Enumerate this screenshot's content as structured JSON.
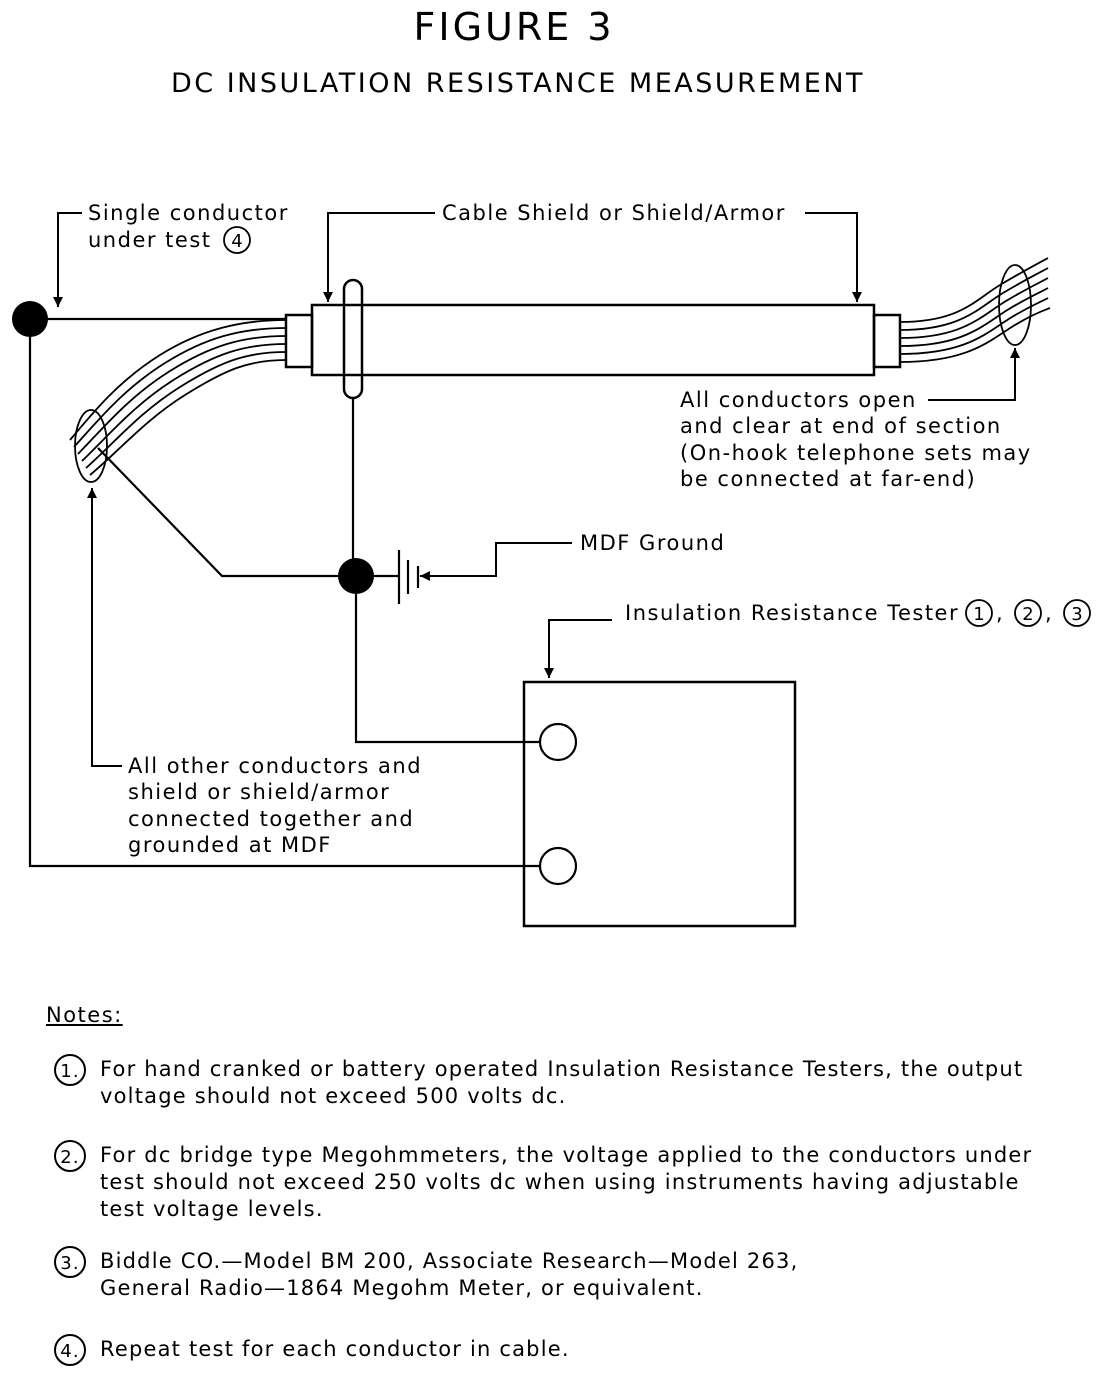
{
  "figure": {
    "title": "FIGURE 3",
    "subtitle": "DC INSULATION RESISTANCE MEASUREMENT"
  },
  "labels": {
    "single_conductor_line1": "Single conductor",
    "single_conductor_line2": "under test",
    "single_conductor_ref": "4",
    "cable_shield": "Cable Shield or Shield/Armor",
    "far_end_line1": "All conductors open",
    "far_end_line2": "and clear at end of section",
    "far_end_line3": "(On-hook telephone sets may",
    "far_end_line4": "be connected at far-end)",
    "mdf_ground": "MDF Ground",
    "tester": "Insulation Resistance Tester",
    "tester_ref1": "1",
    "tester_ref2": "2",
    "tester_ref3": "3",
    "tester_sep": ",",
    "others_line1": "All other conductors and",
    "others_line2": "shield or shield/armor",
    "others_line3": "connected together and",
    "others_line4": "grounded at MDF"
  },
  "notes": {
    "heading": "Notes:",
    "items": [
      {
        "number": "1.",
        "lines": [
          "For hand cranked or battery operated Insulation Resistance Testers, the output",
          "voltage should not exceed 500 volts dc."
        ]
      },
      {
        "number": "2.",
        "lines": [
          "For dc bridge type Megohmmeters, the voltage applied to the conductors under",
          "test should not exceed 250 volts dc when using instruments having adjustable",
          "test voltage levels."
        ]
      },
      {
        "number": "3.",
        "lines": [
          "Biddle CO.—Model BM 200, Associate Research—Model 263,",
          "General Radio—1864 Megohm Meter, or equivalent."
        ]
      },
      {
        "number": "4.",
        "lines": [
          "Repeat test for each conductor in cable."
        ]
      }
    ]
  }
}
